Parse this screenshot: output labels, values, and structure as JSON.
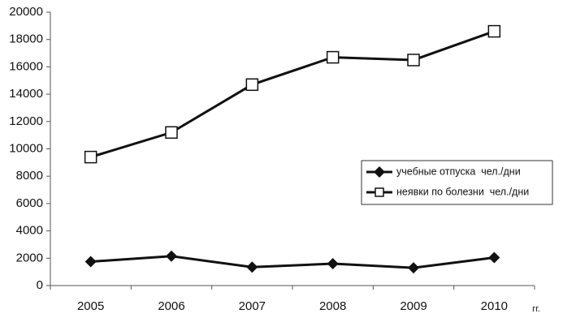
{
  "chart_data": {
    "type": "line",
    "x_label": "гг.",
    "categories": [
      "2005",
      "2006",
      "2007",
      "2008",
      "2009",
      "2010"
    ],
    "series": [
      {
        "name": "учебные отпуска  чел./дни",
        "color": "#111111",
        "marker": "diamond",
        "values": [
          1750,
          2150,
          1350,
          1600,
          1300,
          2050
        ]
      },
      {
        "name": "неявки по болезни  чел./дни",
        "color": "#111111",
        "marker": "square",
        "values": [
          9400,
          11200,
          14700,
          16700,
          16500,
          18600
        ]
      }
    ],
    "ylim": [
      0,
      20000
    ],
    "yticks": [
      0,
      2000,
      4000,
      6000,
      8000,
      10000,
      12000,
      14000,
      16000,
      18000,
      20000
    ],
    "grid": false,
    "legend_position": "center right"
  }
}
